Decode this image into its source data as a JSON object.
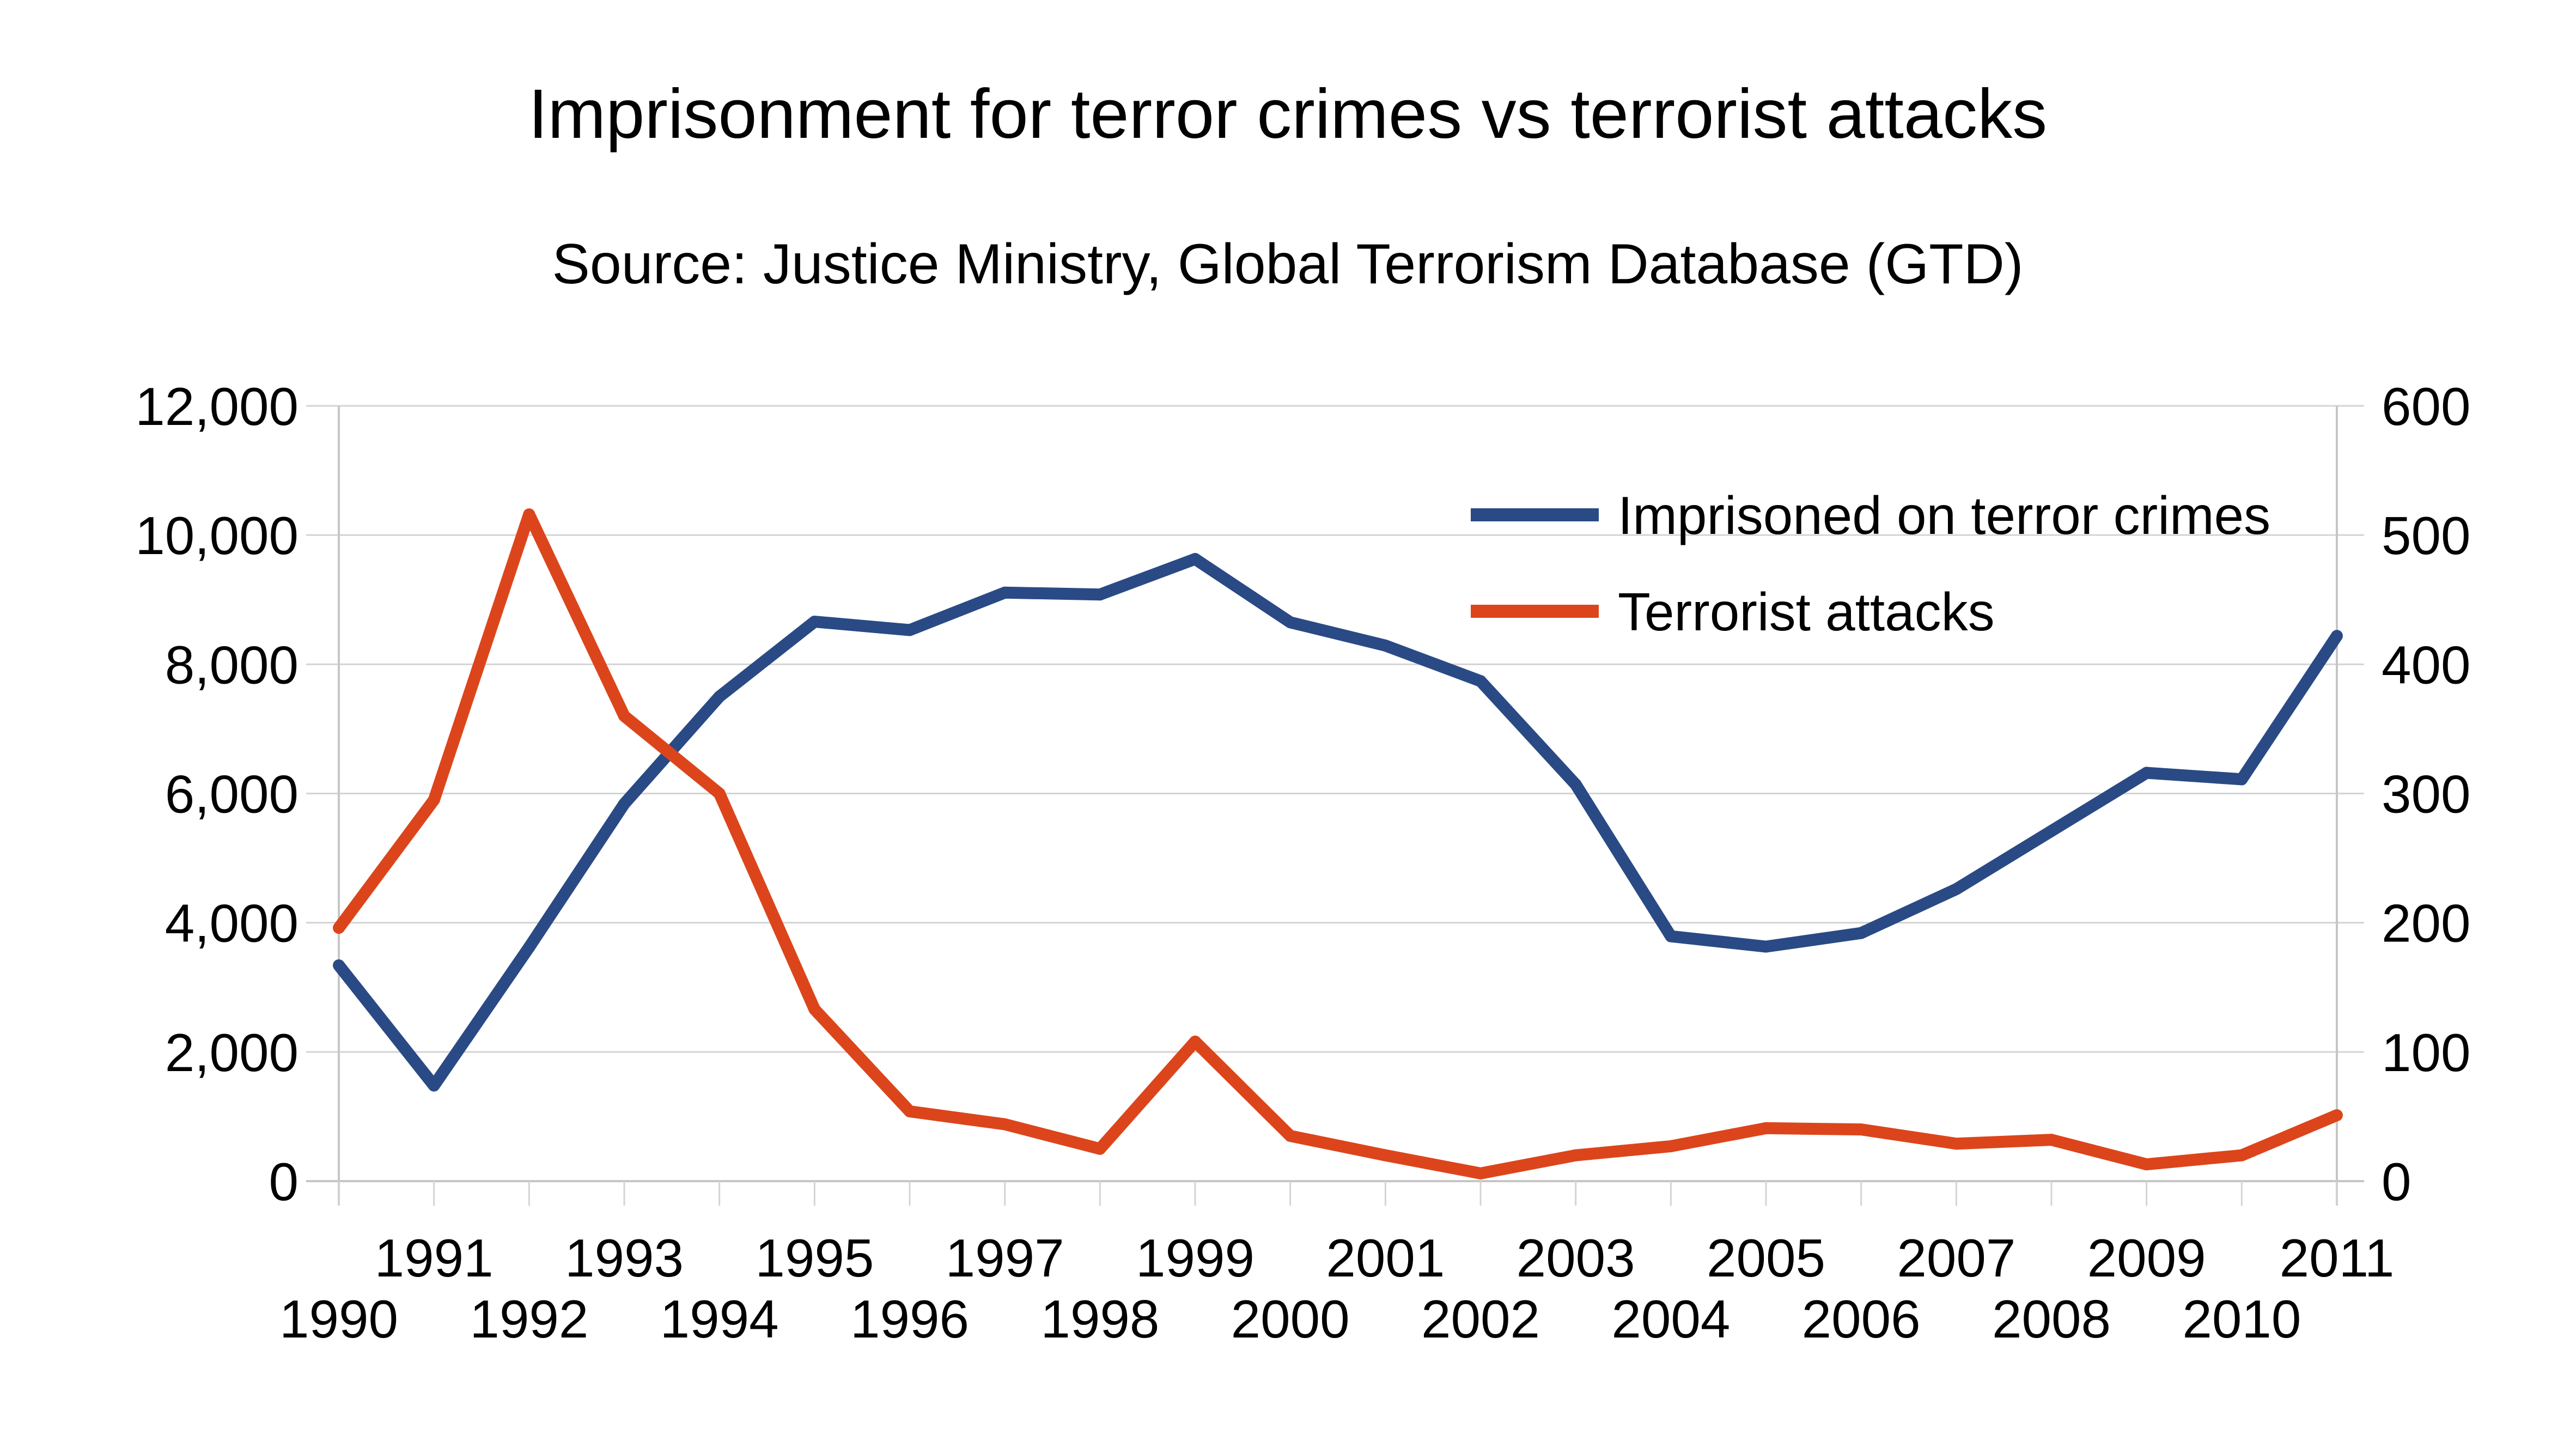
{
  "chart_data": {
    "type": "line",
    "title": "Imprisonment for terror crimes vs terrorist attacks",
    "subtitle": "Source: Justice Ministry, Global Terrorism Database (GTD)",
    "xlabel": "",
    "ylabel_left": "",
    "ylabel_right": "",
    "categories": [
      "1990",
      "1991",
      "1992",
      "1993",
      "1994",
      "1995",
      "1996",
      "1997",
      "1998",
      "1999",
      "2000",
      "2001",
      "2002",
      "2003",
      "2004",
      "2005",
      "2006",
      "2007",
      "2008",
      "2009",
      "2010",
      "2011"
    ],
    "y_left": {
      "range": [
        0,
        12000
      ],
      "ticks": [
        0,
        2000,
        4000,
        6000,
        8000,
        10000,
        12000
      ],
      "tick_labels": [
        "0",
        "2,000",
        "4,000",
        "6,000",
        "8,000",
        "10,000",
        "12,000"
      ]
    },
    "y_right": {
      "range": [
        0,
        600
      ],
      "ticks": [
        0,
        100,
        200,
        300,
        400,
        500,
        600
      ],
      "tick_labels": [
        "0",
        "100",
        "200",
        "300",
        "400",
        "500",
        "600"
      ]
    },
    "grid": true,
    "legend_position": "top-right",
    "series": [
      {
        "name": "Imprisoned on terror crimes",
        "axis": "left",
        "color": "#2a4a85",
        "values": [
          3340,
          1480,
          3620,
          5840,
          7500,
          8660,
          8530,
          9110,
          9080,
          9630,
          8650,
          8290,
          7740,
          6140,
          3790,
          3630,
          3840,
          4520,
          5420,
          6320,
          6220,
          8440
        ]
      },
      {
        "name": "Terrorist attacks",
        "axis": "right",
        "color": "#dc451b",
        "values": [
          196,
          295,
          516,
          360,
          300,
          133,
          54,
          44,
          25,
          108,
          35,
          20,
          6,
          20,
          27,
          41,
          40,
          29,
          32,
          13,
          20,
          51
        ]
      }
    ]
  }
}
